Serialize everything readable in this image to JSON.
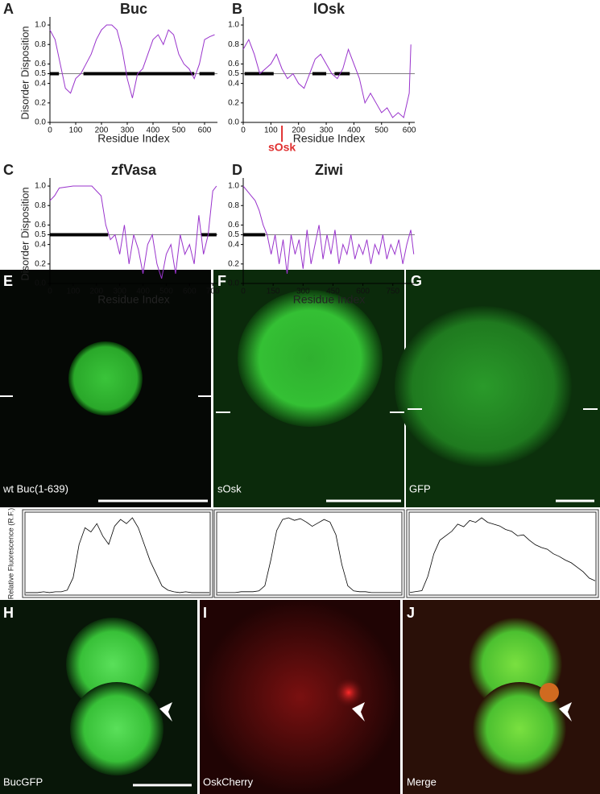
{
  "chart_data": [
    {
      "type": "line",
      "letter": "A",
      "title": "Buc",
      "ylabel": "Disorder Disposition",
      "xlabel": "Residue Index",
      "color": "#9933cc",
      "x": [
        0,
        20,
        40,
        60,
        80,
        100,
        120,
        140,
        160,
        180,
        200,
        220,
        240,
        260,
        280,
        300,
        320,
        340,
        360,
        380,
        400,
        420,
        440,
        460,
        480,
        500,
        520,
        540,
        560,
        580,
        600,
        620,
        639
      ],
      "values": [
        0.95,
        0.85,
        0.6,
        0.35,
        0.3,
        0.45,
        0.5,
        0.6,
        0.7,
        0.85,
        0.95,
        1.0,
        1.0,
        0.95,
        0.75,
        0.45,
        0.25,
        0.5,
        0.55,
        0.7,
        0.85,
        0.9,
        0.8,
        0.95,
        0.9,
        0.7,
        0.6,
        0.55,
        0.45,
        0.6,
        0.85,
        0.88,
        0.9
      ],
      "xlim": [
        0,
        650
      ],
      "xticks": [
        0,
        100,
        200,
        300,
        400,
        500,
        600
      ],
      "ylim": [
        0,
        1.05
      ],
      "yticks": [
        {
          "value": 0,
          "label": "0.0"
        },
        {
          "value": 0.2,
          "label": "0.2"
        },
        {
          "value": 0.4,
          "label": "0.4"
        },
        {
          "value": 0.5,
          "label": "0.5"
        },
        {
          "value": 0.6,
          "label": "0.6"
        },
        {
          "value": 0.8,
          "label": "0.8"
        },
        {
          "value": 1,
          "label": "1.0"
        }
      ],
      "threshold": 0.5,
      "ordered": [
        [
          0,
          35
        ],
        [
          130,
          560
        ],
        [
          580,
          639
        ]
      ]
    },
    {
      "type": "line",
      "letter": "B",
      "title": "lOsk",
      "xlabel": "Residue Index",
      "color": "#9933cc",
      "x": [
        0,
        20,
        40,
        60,
        80,
        100,
        120,
        140,
        160,
        180,
        200,
        220,
        240,
        260,
        280,
        300,
        320,
        340,
        360,
        380,
        400,
        420,
        440,
        460,
        480,
        500,
        520,
        540,
        560,
        580,
        600,
        606
      ],
      "values": [
        0.75,
        0.85,
        0.7,
        0.5,
        0.55,
        0.6,
        0.7,
        0.55,
        0.45,
        0.5,
        0.4,
        0.35,
        0.5,
        0.65,
        0.7,
        0.6,
        0.5,
        0.45,
        0.55,
        0.75,
        0.6,
        0.45,
        0.2,
        0.3,
        0.2,
        0.1,
        0.15,
        0.05,
        0.1,
        0.05,
        0.3,
        0.8
      ],
      "xlim": [
        0,
        620
      ],
      "xticks": [
        0,
        100,
        200,
        300,
        400,
        500,
        600
      ],
      "ylim": [
        0,
        1.05
      ],
      "yticks": [
        {
          "value": 0,
          "label": "0.0"
        },
        {
          "value": 0.2,
          "label": "0.2"
        },
        {
          "value": 0.4,
          "label": "0.4"
        },
        {
          "value": 0.5,
          "label": "0.5"
        },
        {
          "value": 0.6,
          "label": "0.6"
        },
        {
          "value": 0.8,
          "label": "0.8"
        },
        {
          "value": 1,
          "label": "1.0"
        }
      ],
      "threshold": 0.5,
      "ordered": [
        [
          5,
          110
        ],
        [
          250,
          300
        ],
        [
          330,
          385
        ]
      ],
      "marker": {
        "x": 140,
        "label": "sOsk",
        "color": "#e03030"
      }
    },
    {
      "type": "line",
      "letter": "C",
      "title": "zfVasa",
      "ylabel": "Disorder Disposition",
      "xlabel": "Residue Index",
      "color": "#9933cc",
      "x": [
        0,
        20,
        40,
        100,
        180,
        220,
        240,
        260,
        280,
        300,
        320,
        340,
        360,
        380,
        400,
        420,
        440,
        460,
        480,
        500,
        520,
        540,
        560,
        580,
        600,
        620,
        640,
        660,
        680,
        700,
        716
      ],
      "values": [
        0.85,
        0.9,
        0.98,
        1.0,
        1.0,
        0.9,
        0.6,
        0.45,
        0.5,
        0.3,
        0.6,
        0.2,
        0.5,
        0.35,
        0.1,
        0.4,
        0.5,
        0.2,
        0.05,
        0.3,
        0.4,
        0.1,
        0.5,
        0.3,
        0.4,
        0.2,
        0.7,
        0.3,
        0.5,
        0.95,
        1.0
      ],
      "xlim": [
        0,
        720
      ],
      "xticks": [
        0,
        100,
        200,
        300,
        400,
        500,
        600,
        700
      ],
      "ylim": [
        0,
        1.05
      ],
      "yticks": [
        {
          "value": 0,
          "label": "0.0"
        },
        {
          "value": 0.2,
          "label": "0.2"
        },
        {
          "value": 0.4,
          "label": "0.4"
        },
        {
          "value": 0.5,
          "label": "0.5"
        },
        {
          "value": 0.6,
          "label": "0.6"
        },
        {
          "value": 0.8,
          "label": "0.8"
        },
        {
          "value": 1,
          "label": "1.0"
        }
      ],
      "threshold": 0.5,
      "ordered": [
        [
          0,
          250
        ],
        [
          650,
          716
        ]
      ]
    },
    {
      "type": "line",
      "letter": "D",
      "title": "Ziwi",
      "xlabel": "Residue Index",
      "color": "#9933cc",
      "x": [
        0,
        20,
        40,
        60,
        80,
        100,
        120,
        140,
        160,
        180,
        200,
        220,
        240,
        260,
        280,
        300,
        320,
        340,
        360,
        380,
        400,
        420,
        440,
        460,
        480,
        500,
        520,
        540,
        560,
        580,
        600,
        620,
        640,
        660,
        680,
        700,
        720,
        740,
        760,
        780,
        800,
        820,
        840,
        855
      ],
      "values": [
        1.0,
        0.95,
        0.9,
        0.85,
        0.75,
        0.6,
        0.5,
        0.3,
        0.5,
        0.2,
        0.45,
        0.1,
        0.5,
        0.3,
        0.45,
        0.15,
        0.55,
        0.2,
        0.4,
        0.6,
        0.25,
        0.5,
        0.3,
        0.55,
        0.2,
        0.4,
        0.3,
        0.5,
        0.25,
        0.4,
        0.3,
        0.45,
        0.2,
        0.4,
        0.3,
        0.5,
        0.25,
        0.4,
        0.3,
        0.45,
        0.2,
        0.4,
        0.55,
        0.3
      ],
      "xlim": [
        0,
        860
      ],
      "xticks": [
        0,
        150,
        300,
        450,
        600,
        750
      ],
      "ylim": [
        0,
        1.05
      ],
      "yticks": [
        {
          "value": 0,
          "label": "0.0"
        },
        {
          "value": 0.2,
          "label": "0.2"
        },
        {
          "value": 0.4,
          "label": "0.4"
        },
        {
          "value": 0.5,
          "label": "0.5"
        },
        {
          "value": 0.6,
          "label": "0.6"
        },
        {
          "value": 0.8,
          "label": "0.8"
        },
        {
          "value": 1,
          "label": "1.0"
        }
      ],
      "threshold": 0.5,
      "ordered": [
        [
          0,
          110
        ]
      ]
    },
    {
      "type": "profile",
      "ylabel": "Relative Fluorescence (R.F.)",
      "color": "#000000",
      "values": [
        2,
        2,
        2,
        3,
        2,
        3,
        3,
        5,
        20,
        60,
        80,
        75,
        85,
        70,
        60,
        82,
        90,
        85,
        92,
        80,
        60,
        40,
        25,
        10,
        5,
        3,
        2,
        3,
        2,
        2,
        2,
        2
      ]
    },
    {
      "type": "profile",
      "color": "#000000",
      "values": [
        2,
        2,
        2,
        2,
        3,
        3,
        3,
        4,
        10,
        40,
        75,
        88,
        90,
        87,
        89,
        85,
        80,
        84,
        88,
        85,
        70,
        35,
        10,
        4,
        3,
        3,
        2,
        2,
        2,
        2,
        2,
        2
      ]
    },
    {
      "type": "profile",
      "color": "#000000",
      "values": [
        2,
        3,
        4,
        20,
        45,
        60,
        65,
        70,
        78,
        75,
        82,
        80,
        85,
        80,
        78,
        76,
        72,
        70,
        65,
        66,
        60,
        55,
        52,
        50,
        45,
        42,
        38,
        35,
        30,
        25,
        18,
        15
      ]
    }
  ],
  "images": [
    {
      "letter": "E",
      "label": "wt Buc(1-639)"
    },
    {
      "letter": "F",
      "label": "sOsk"
    },
    {
      "letter": "G",
      "label": "GFP"
    },
    {
      "letter": "H",
      "label": "BucGFP"
    },
    {
      "letter": "I",
      "label": "OskCherry"
    },
    {
      "letter": "J",
      "label": "Merge"
    }
  ]
}
